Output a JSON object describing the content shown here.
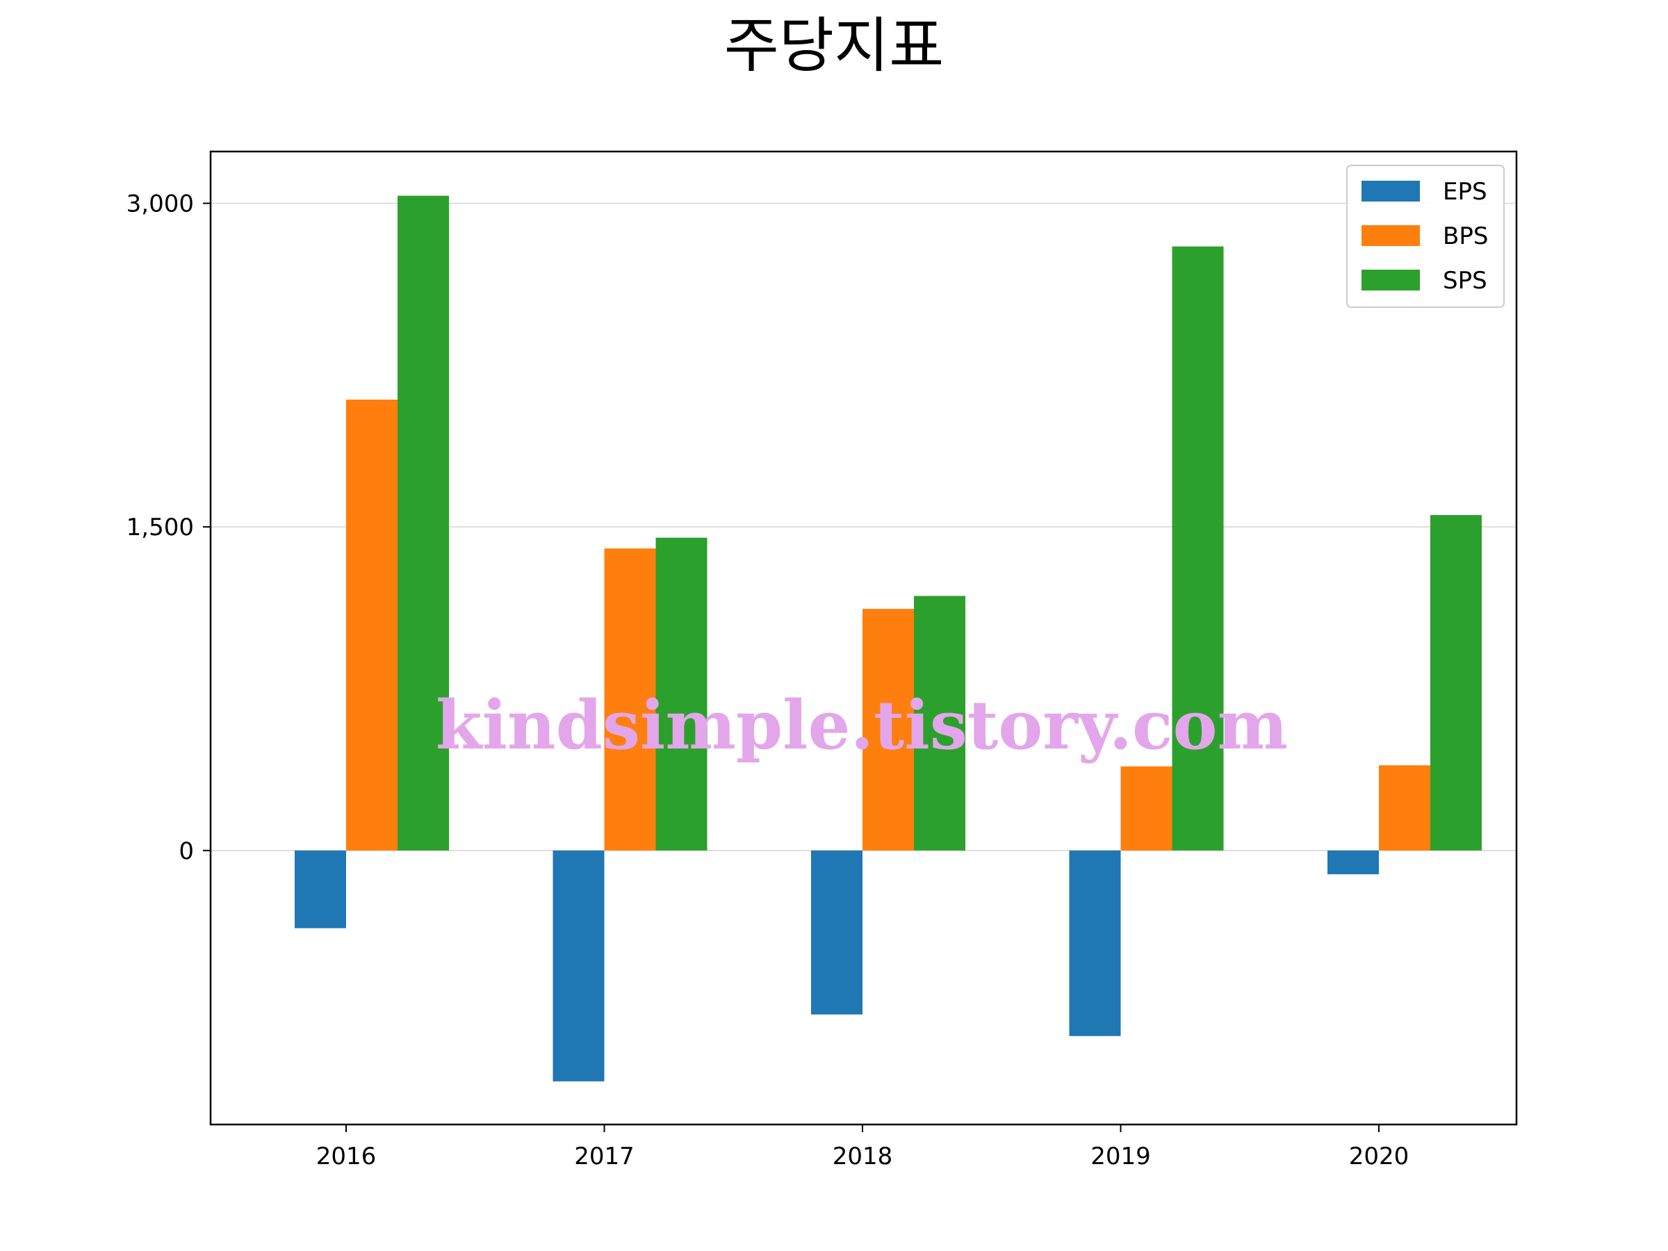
{
  "chart_data": {
    "type": "bar",
    "title": "주당지표",
    "xlabel": "",
    "ylabel": "",
    "categories": [
      "2016",
      "2017",
      "2018",
      "2019",
      "2020"
    ],
    "series": [
      {
        "name": "EPS",
        "color": "#1f77b4",
        "values": [
          -360,
          -1070,
          -760,
          -860,
          -110
        ]
      },
      {
        "name": "BPS",
        "color": "#ff7f0e",
        "values": [
          2090,
          1400,
          1120,
          390,
          395
        ]
      },
      {
        "name": "SPS",
        "color": "#2ca02c",
        "values": [
          3035,
          1450,
          1180,
          2800,
          1555
        ]
      }
    ],
    "ylim": [
      -1270,
      3240
    ],
    "yticks": [
      0,
      1500,
      3000
    ],
    "ytick_labels": [
      "0",
      "1,500",
      "3,000"
    ],
    "grid": "horizontal",
    "legend_position": "top-right"
  },
  "watermark": "kindsimple.tistory.com"
}
